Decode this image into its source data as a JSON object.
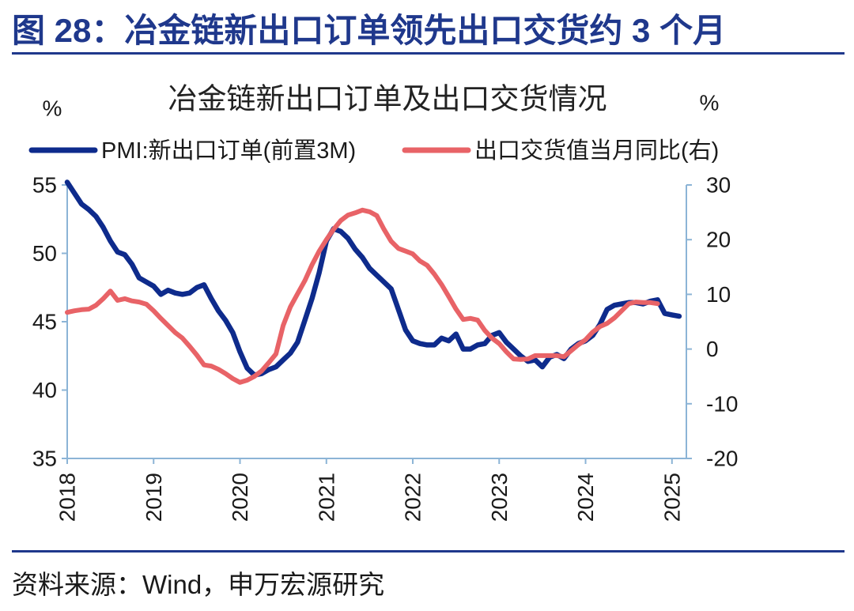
{
  "figure": {
    "title": "图 28：冶金链新出口订单领先出口交货约 3 个月",
    "source": "资料来源：Wind，申万宏源研究"
  },
  "colors": {
    "title": "#1f388c",
    "rules": "#1f388c",
    "axis": "#8cb4d6",
    "text": "#1a1a1a"
  },
  "chart_data": {
    "type": "line",
    "title": "冶金链新出口订单及出口交货情况",
    "legend": "top",
    "grid": false,
    "x_axis": {
      "range": [
        "2018-01",
        "2025-03"
      ],
      "ticks": [
        "2018",
        "2019",
        "2020",
        "2021",
        "2022",
        "2023",
        "2024",
        "2025"
      ]
    },
    "y_left": {
      "unit": "%",
      "range": [
        35,
        55
      ],
      "ticks": [
        55,
        50,
        45,
        40,
        35
      ]
    },
    "y_right": {
      "unit": "%",
      "range": [
        -20,
        30
      ],
      "ticks": [
        30,
        20,
        10,
        0,
        -10,
        -20
      ]
    },
    "x": [
      "2018-01",
      "2018-02",
      "2018-03",
      "2018-04",
      "2018-05",
      "2018-06",
      "2018-07",
      "2018-08",
      "2018-09",
      "2018-10",
      "2018-11",
      "2018-12",
      "2019-01",
      "2019-02",
      "2019-03",
      "2019-04",
      "2019-05",
      "2019-06",
      "2019-07",
      "2019-08",
      "2019-09",
      "2019-10",
      "2019-11",
      "2019-12",
      "2020-01",
      "2020-02",
      "2020-03",
      "2020-04",
      "2020-05",
      "2020-06",
      "2020-07",
      "2020-08",
      "2020-09",
      "2020-10",
      "2020-11",
      "2020-12",
      "2021-01",
      "2021-02",
      "2021-03",
      "2021-04",
      "2021-05",
      "2021-06",
      "2021-07",
      "2021-08",
      "2021-09",
      "2021-10",
      "2021-11",
      "2021-12",
      "2022-01",
      "2022-02",
      "2022-03",
      "2022-04",
      "2022-05",
      "2022-06",
      "2022-07",
      "2022-08",
      "2022-09",
      "2022-10",
      "2022-11",
      "2022-12",
      "2023-01",
      "2023-02",
      "2023-03",
      "2023-04",
      "2023-05",
      "2023-06",
      "2023-07",
      "2023-08",
      "2023-09",
      "2023-10",
      "2023-11",
      "2023-12",
      "2024-01",
      "2024-02",
      "2024-03",
      "2024-04",
      "2024-05",
      "2024-06",
      "2024-07",
      "2024-08",
      "2024-09",
      "2024-10",
      "2024-11",
      "2024-12",
      "2025-01",
      "2025-02"
    ],
    "series": [
      {
        "name": "PMI:新出口订单(前置3M)",
        "axis": "left",
        "color": "#0e2b8c",
        "values": [
          55.2,
          54.4,
          53.6,
          53.2,
          52.7,
          51.9,
          50.9,
          50.1,
          49.9,
          49.2,
          48.2,
          47.9,
          47.6,
          47.0,
          47.3,
          47.1,
          47.0,
          47.1,
          47.5,
          47.7,
          46.7,
          45.8,
          45.1,
          44.2,
          42.8,
          41.6,
          41.1,
          41.2,
          41.5,
          41.7,
          42.2,
          42.7,
          43.5,
          45.1,
          46.7,
          48.6,
          50.9,
          51.8,
          51.6,
          51.1,
          50.3,
          49.7,
          48.9,
          48.4,
          47.9,
          47.4,
          45.9,
          44.4,
          43.6,
          43.4,
          43.3,
          43.3,
          43.8,
          43.6,
          44.1,
          43.0,
          43.0,
          43.3,
          43.4,
          44.0,
          44.2,
          43.5,
          43.0,
          42.5,
          42.1,
          42.2,
          41.7,
          42.4,
          42.6,
          42.3,
          43.0,
          43.4,
          43.6,
          44.0,
          44.8,
          45.9,
          46.2,
          46.3,
          46.4,
          46.4,
          46.3,
          46.5,
          46.6,
          45.6,
          45.5,
          45.4
        ]
      },
      {
        "name": "出口交货值当月同比(右)",
        "axis": "right",
        "color": "#e86367",
        "values": [
          6.7,
          7.0,
          7.2,
          7.3,
          8.0,
          9.2,
          10.6,
          8.9,
          9.2,
          8.8,
          8.6,
          8.2,
          7.0,
          5.6,
          4.3,
          3.0,
          2.0,
          0.5,
          -1.1,
          -2.9,
          -3.1,
          -3.7,
          -4.5,
          -5.4,
          -6.1,
          -5.7,
          -5.0,
          -4.0,
          -2.5,
          -0.9,
          4.3,
          7.7,
          10.1,
          12.5,
          15.4,
          17.9,
          20.0,
          21.9,
          23.5,
          24.5,
          24.9,
          25.4,
          25.1,
          24.4,
          21.9,
          19.7,
          18.4,
          17.9,
          17.4,
          16.1,
          15.3,
          13.7,
          11.8,
          9.6,
          7.3,
          5.4,
          5.6,
          5.3,
          3.4,
          2.0,
          1.0,
          -0.5,
          -1.8,
          -1.9,
          -1.8,
          -1.2,
          -1.2,
          -1.2,
          -1.2,
          -1.4,
          -0.3,
          0.8,
          1.7,
          3.1,
          4.1,
          4.7,
          5.7,
          7.0,
          8.3,
          8.6,
          8.5,
          8.5,
          8.3,
          null,
          null,
          null
        ]
      }
    ]
  }
}
